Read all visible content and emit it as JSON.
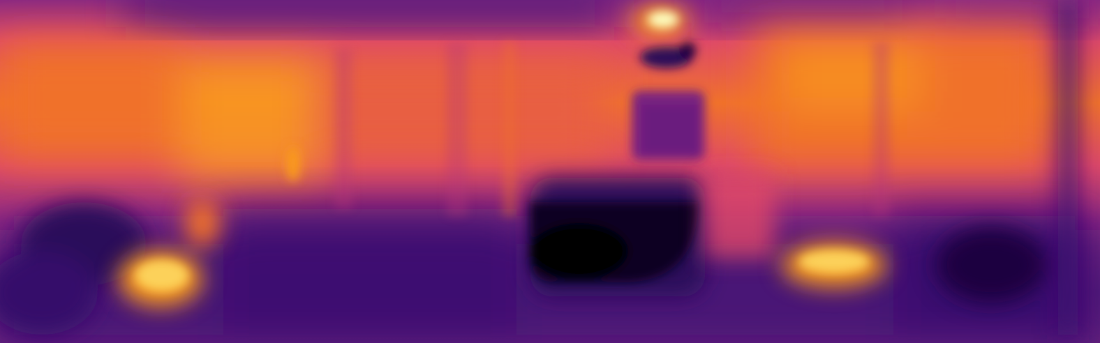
{
  "image": {
    "kind": "depth-map",
    "colormap": "inferno",
    "palette": {
      "darkest": "#000004",
      "deep_purple": "#3b0f70",
      "purple": "#5a1a7a",
      "magenta": "#8c2981",
      "rose": "#b73779",
      "red_orange": "#de4968",
      "orange": "#f0712c",
      "amber": "#f99a1c",
      "yellow": "#fcd15a",
      "pale_yellow": "#fcfdbf"
    }
  }
}
